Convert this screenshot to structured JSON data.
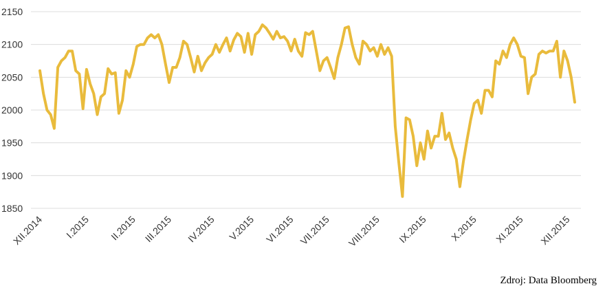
{
  "chart_data": {
    "type": "line",
    "source": "Zdroj: Data Bloomberg",
    "color": "#e9bb3c",
    "grid": true,
    "ylim": [
      1850,
      2150
    ],
    "yticks": [
      1850,
      1900,
      1950,
      2000,
      2050,
      2100,
      2150
    ],
    "categories": [
      "XII.2014",
      null,
      null,
      null,
      null,
      null,
      null,
      null,
      null,
      null,
      null,
      null,
      null,
      "I.2015",
      null,
      null,
      null,
      null,
      null,
      null,
      null,
      null,
      null,
      null,
      null,
      null,
      "II.2015",
      null,
      null,
      null,
      null,
      null,
      null,
      null,
      null,
      null,
      "III.2015",
      null,
      null,
      null,
      null,
      null,
      null,
      null,
      null,
      null,
      null,
      null,
      "IV.2015",
      null,
      null,
      null,
      null,
      null,
      null,
      null,
      null,
      null,
      null,
      "V.2015",
      null,
      null,
      null,
      null,
      null,
      null,
      null,
      null,
      null,
      null,
      "VI.2015",
      null,
      null,
      null,
      null,
      null,
      null,
      null,
      null,
      null,
      "VII.2015",
      null,
      null,
      null,
      null,
      null,
      null,
      null,
      null,
      null,
      null,
      null,
      null,
      null,
      "VIII.2015",
      null,
      null,
      null,
      null,
      null,
      null,
      null,
      null,
      null,
      null,
      null,
      null,
      "IX.2015",
      null,
      null,
      null,
      null,
      null,
      null,
      null,
      null,
      null,
      null,
      null,
      null,
      null,
      "X.2015",
      null,
      null,
      null,
      null,
      null,
      null,
      null,
      null,
      null,
      null,
      null,
      null,
      "XI.2015",
      null,
      null,
      null,
      null,
      null,
      null,
      null,
      null,
      null,
      null,
      null,
      null,
      "XII.2015",
      null,
      null
    ],
    "values": [
      2060,
      2025,
      2000,
      1993,
      1972,
      2065,
      2075,
      2080,
      2090,
      2090,
      2060,
      2055,
      2002,
      2062,
      2040,
      2025,
      1993,
      2020,
      2025,
      2063,
      2055,
      2057,
      1995,
      2015,
      2060,
      2050,
      2070,
      2097,
      2100,
      2100,
      2110,
      2115,
      2110,
      2115,
      2100,
      2070,
      2042,
      2065,
      2065,
      2080,
      2105,
      2100,
      2080,
      2058,
      2082,
      2060,
      2072,
      2080,
      2085,
      2100,
      2088,
      2100,
      2110,
      2090,
      2107,
      2117,
      2112,
      2088,
      2117,
      2085,
      2115,
      2120,
      2130,
      2125,
      2117,
      2108,
      2120,
      2110,
      2112,
      2105,
      2090,
      2108,
      2090,
      2082,
      2118,
      2115,
      2120,
      2090,
      2060,
      2075,
      2080,
      2065,
      2048,
      2080,
      2100,
      2125,
      2127,
      2100,
      2080,
      2070,
      2105,
      2100,
      2090,
      2095,
      2082,
      2100,
      2085,
      2095,
      2082,
      1975,
      1920,
      1868,
      1988,
      1985,
      1960,
      1915,
      1950,
      1925,
      1968,
      1942,
      1960,
      1960,
      1995,
      1955,
      1965,
      1942,
      1925,
      1883,
      1922,
      1955,
      1985,
      2010,
      2015,
      1995,
      2030,
      2030,
      2020,
      2075,
      2070,
      2090,
      2080,
      2100,
      2110,
      2100,
      2082,
      2080,
      2025,
      2050,
      2055,
      2085,
      2090,
      2087,
      2090,
      2090,
      2105,
      2050,
      2090,
      2075,
      2050,
      2012
    ]
  }
}
